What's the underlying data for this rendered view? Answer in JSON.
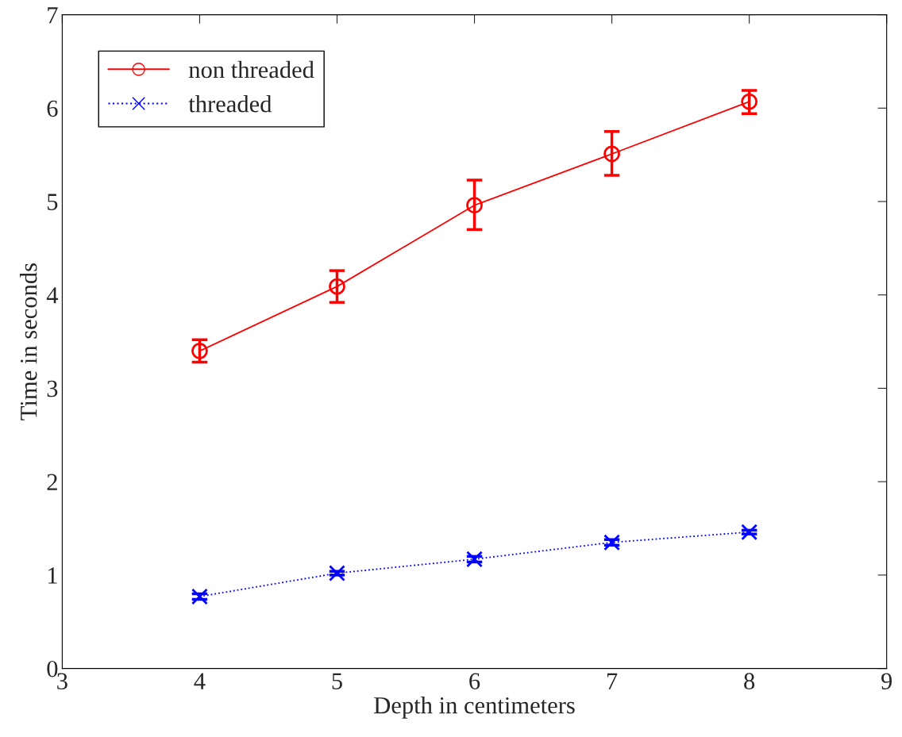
{
  "chart_data": {
    "type": "line",
    "xlabel": "Depth in centimeters",
    "ylabel": "Time in seconds",
    "x": [
      4,
      5,
      6,
      7,
      8
    ],
    "series": [
      {
        "name": "non threaded",
        "color": "#ff0000",
        "marker": "circle",
        "line_style": "solid",
        "values": [
          3.4,
          4.09,
          4.96,
          5.51,
          6.07
        ],
        "errors": [
          [
            3.28,
            3.52
          ],
          [
            3.92,
            4.26
          ],
          [
            4.7,
            5.23
          ],
          [
            5.28,
            5.75
          ],
          [
            5.94,
            6.19
          ]
        ]
      },
      {
        "name": "threaded",
        "color": "#0000ff",
        "marker": "cross",
        "line_style": "dotted",
        "values": [
          0.77,
          1.02,
          1.17,
          1.35,
          1.46
        ],
        "errors": [
          [
            0.74,
            0.8
          ],
          [
            1.0,
            1.04
          ],
          [
            1.14,
            1.2
          ],
          [
            1.32,
            1.38
          ],
          [
            1.44,
            1.48
          ]
        ]
      }
    ],
    "xlim": [
      3,
      9
    ],
    "xticks": [
      3,
      4,
      5,
      6,
      7,
      8,
      9
    ],
    "ylim": [
      0,
      7
    ],
    "yticks": [
      0,
      1,
      2,
      3,
      4,
      5,
      6,
      7
    ],
    "grid": false,
    "legend": "top left"
  }
}
